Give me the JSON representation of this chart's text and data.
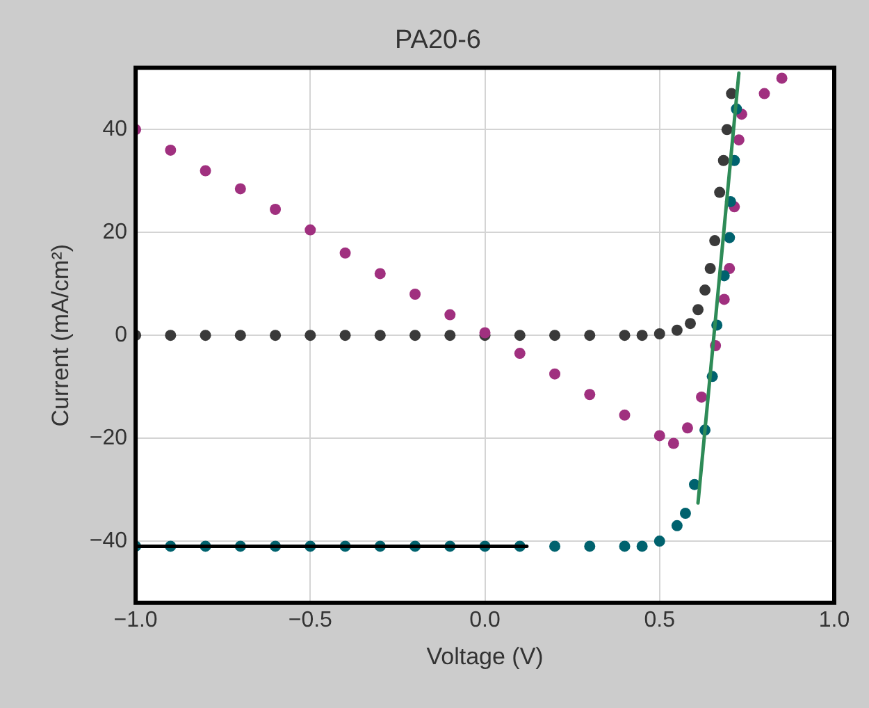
{
  "chart_data": {
    "type": "scatter",
    "title": "PA20-6",
    "xlabel": "Voltage (V)",
    "ylabel": "Current (mA/cm²)",
    "xlim": [
      -1,
      1
    ],
    "ylim": [
      -52,
      52
    ],
    "xticks": [
      {
        "value": -1,
        "label": "−1.0"
      },
      {
        "value": -0.5,
        "label": "−0.5"
      },
      {
        "value": 0,
        "label": "0.0"
      },
      {
        "value": 0.5,
        "label": "0.5"
      },
      {
        "value": 1,
        "label": "1.0"
      }
    ],
    "yticks": [
      {
        "value": -40,
        "label": "−40"
      },
      {
        "value": -20,
        "label": "−20"
      },
      0,
      20,
      40
    ],
    "grid": true,
    "marker": "circle",
    "series": [
      {
        "color": "#3a3a3a",
        "x": [
          -1,
          -0.9,
          -0.8,
          -0.7,
          -0.6,
          -0.5,
          -0.4,
          -0.3,
          -0.2,
          -0.1,
          0,
          0.1,
          0.2,
          0.3,
          0.4,
          0.45,
          0.5,
          0.55,
          0.588,
          0.61,
          0.63,
          0.645,
          0.658,
          0.672,
          0.683,
          0.693,
          0.706
        ],
        "values": [
          0,
          0,
          0,
          0,
          0,
          0,
          0,
          0,
          0,
          0,
          0,
          0,
          0,
          0,
          0,
          0,
          0.3,
          1,
          2.3,
          5,
          8.8,
          13,
          18.4,
          27.8,
          34,
          40,
          47
        ]
      },
      {
        "color": "#a0307f",
        "x": [
          -1,
          -0.9,
          -0.8,
          -0.7,
          -0.6,
          -0.5,
          -0.4,
          -0.3,
          -0.2,
          -0.1,
          0,
          0.1,
          0.2,
          0.3,
          0.4,
          0.5,
          0.54,
          0.58,
          0.62,
          0.66,
          0.685,
          0.7,
          0.714,
          0.727,
          0.735,
          0.8,
          0.85
        ],
        "values": [
          40,
          36,
          32,
          28.5,
          24.5,
          20.5,
          16,
          12,
          8,
          4,
          0.5,
          -3.5,
          -7.5,
          -11.5,
          -15.5,
          -19.5,
          -21,
          -18,
          -12,
          -2,
          7,
          13,
          25,
          38,
          43,
          47,
          50
        ]
      },
      {
        "color": "#00626e",
        "x": [
          -1,
          -0.9,
          -0.8,
          -0.7,
          -0.6,
          -0.5,
          -0.4,
          -0.3,
          -0.2,
          -0.1,
          0,
          0.1,
          0.2,
          0.3,
          0.4,
          0.45,
          0.5,
          0.55,
          0.574,
          0.6,
          0.63,
          0.651,
          0.664,
          0.685,
          0.7,
          0.703,
          0.714,
          0.72
        ],
        "values": [
          -41,
          -41,
          -41,
          -41,
          -41,
          -41,
          -41,
          -41,
          -41,
          -41,
          -41,
          -41,
          -41,
          -41,
          -41,
          -41,
          -40,
          -37,
          -34.6,
          -29,
          -18.4,
          -8,
          2,
          11.6,
          19,
          26,
          34,
          44
        ]
      },
      {
        "type": "line",
        "marker": "none",
        "color": "#000000",
        "x": [
          -1,
          0.12
        ],
        "values": [
          -41,
          -41
        ]
      },
      {
        "type": "line",
        "marker": "none",
        "color": "#2e8b57",
        "x": [
          0.61,
          0.727
        ],
        "values": [
          -32.6,
          51
        ]
      }
    ]
  }
}
